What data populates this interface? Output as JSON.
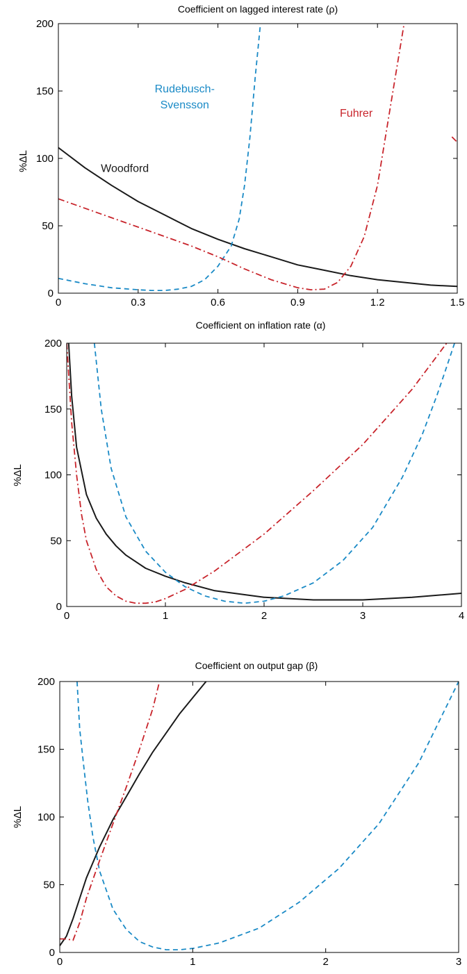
{
  "colors": {
    "woodford": "#1a1a1a",
    "rudebusch": "#1a8ac6",
    "fuhrer": "#c8242b"
  },
  "chart_data": [
    {
      "type": "line",
      "title": "Coefficient on lagged interest rate (ρ)",
      "xlabel": "",
      "ylabel": "%ΔL",
      "xlim": [
        0,
        1.5
      ],
      "ylim": [
        0,
        200
      ],
      "xticks": [
        0,
        0.3,
        0.6,
        0.9,
        1.2,
        1.5
      ],
      "xtick_labels": [
        "0",
        "0.3",
        "0.6",
        "0.9",
        "1.2",
        "1.5"
      ],
      "yticks": [
        0,
        50,
        100,
        150,
        200
      ],
      "ytick_labels": [
        "0",
        "50",
        "100",
        "150",
        "200"
      ],
      "grid": false,
      "annotations": [
        {
          "text": "Woodford",
          "series": "woodford",
          "x": 0.25,
          "y": 90
        },
        {
          "text": "Rudebusch-",
          "series": "rudebusch",
          "x": 0.475,
          "y": 149
        },
        {
          "text": "Svensson",
          "series": "rudebusch",
          "x": 0.475,
          "y": 137
        },
        {
          "text": "Fuhrer",
          "series": "fuhrer",
          "x": 1.12,
          "y": 131
        }
      ],
      "series": [
        {
          "key": "woodford",
          "style": "solid",
          "x": [
            0,
            0.1,
            0.2,
            0.3,
            0.4,
            0.5,
            0.6,
            0.7,
            0.8,
            0.9,
            1.0,
            1.1,
            1.2,
            1.3,
            1.4,
            1.5
          ],
          "y": [
            108,
            93,
            80,
            68,
            58,
            48,
            40,
            33,
            27,
            21,
            17,
            13,
            10,
            8,
            6,
            5
          ]
        },
        {
          "key": "rudebusch",
          "style": "dashed",
          "x": [
            0,
            0.1,
            0.2,
            0.3,
            0.35,
            0.4,
            0.45,
            0.5,
            0.55,
            0.6,
            0.65,
            0.68,
            0.7,
            0.72,
            0.74,
            0.76
          ],
          "y": [
            11,
            7,
            4,
            2.5,
            2,
            2,
            3,
            5,
            10,
            20,
            35,
            55,
            80,
            115,
            160,
            200
          ]
        },
        {
          "key": "fuhrer",
          "style": "dashdot",
          "x": [
            0,
            0.1,
            0.2,
            0.3,
            0.4,
            0.5,
            0.6,
            0.7,
            0.8,
            0.9,
            0.95,
            1.0,
            1.05,
            1.1,
            1.15,
            1.2,
            1.25,
            1.3
          ],
          "y": [
            70,
            63,
            56,
            49,
            42,
            35,
            27,
            18,
            10,
            4,
            2.5,
            3,
            8,
            20,
            42,
            80,
            140,
            200
          ]
        },
        {
          "key": "fuhrer",
          "style": "dashdot",
          "x": [
            1.48,
            1.5
          ],
          "y": [
            116,
            112
          ]
        }
      ]
    },
    {
      "type": "line",
      "title": "Coefficient on inflation rate (α)",
      "xlabel": "",
      "ylabel": "%ΔL",
      "xlim": [
        0,
        4
      ],
      "ylim": [
        0,
        200
      ],
      "xticks": [
        0,
        1,
        2,
        3,
        4
      ],
      "xtick_labels": [
        "0",
        "1",
        "2",
        "3",
        "4"
      ],
      "yticks": [
        0,
        50,
        100,
        150,
        200
      ],
      "ytick_labels": [
        "0",
        "50",
        "100",
        "150",
        "200"
      ],
      "grid": false,
      "annotations": [],
      "series": [
        {
          "key": "woodford",
          "style": "solid",
          "x": [
            0.02,
            0.05,
            0.1,
            0.2,
            0.3,
            0.4,
            0.5,
            0.6,
            0.8,
            1.0,
            1.2,
            1.5,
            2.0,
            2.5,
            3.0,
            3.5,
            4.0
          ],
          "y": [
            200,
            160,
            121,
            85,
            67,
            55,
            46,
            39,
            29,
            23,
            18,
            12,
            7,
            5,
            5,
            7,
            10
          ]
        },
        {
          "key": "rudebusch",
          "style": "dashed",
          "x": [
            0.28,
            0.35,
            0.45,
            0.6,
            0.8,
            1.0,
            1.2,
            1.4,
            1.6,
            1.8,
            2.0,
            2.2,
            2.5,
            2.8,
            3.1,
            3.4,
            3.6,
            3.75,
            3.85,
            3.93
          ],
          "y": [
            200,
            150,
            105,
            68,
            42,
            26,
            15,
            8,
            4,
            2.5,
            4,
            8,
            18,
            35,
            60,
            98,
            130,
            160,
            182,
            200
          ]
        },
        {
          "key": "fuhrer",
          "style": "dashdot",
          "x": [
            0,
            0.05,
            0.1,
            0.15,
            0.2,
            0.3,
            0.4,
            0.5,
            0.6,
            0.7,
            0.8,
            0.9,
            1.0,
            1.2,
            1.5,
            2.0,
            2.5,
            3.0,
            3.5,
            3.85
          ],
          "y": [
            200,
            140,
            100,
            70,
            50,
            28,
            15,
            8,
            4,
            2.5,
            2.5,
            3.5,
            6,
            13,
            27,
            55,
            88,
            123,
            165,
            200
          ]
        }
      ]
    },
    {
      "type": "line",
      "title": "Coefficient on output gap (β)",
      "xlabel": "",
      "ylabel": "%ΔL",
      "xlim": [
        0,
        3
      ],
      "ylim": [
        0,
        200
      ],
      "xticks": [
        0,
        1,
        2,
        3
      ],
      "xtick_labels": [
        "0",
        "1",
        "2",
        "3"
      ],
      "yticks": [
        0,
        50,
        100,
        150,
        200
      ],
      "ytick_labels": [
        "0",
        "50",
        "100",
        "150",
        "200"
      ],
      "grid": false,
      "annotations": [],
      "series": [
        {
          "key": "woodford",
          "style": "solid",
          "x": [
            0,
            0.05,
            0.1,
            0.15,
            0.2,
            0.3,
            0.4,
            0.5,
            0.6,
            0.7,
            0.8,
            0.9,
            1.0,
            1.1
          ],
          "y": [
            5,
            12,
            25,
            40,
            55,
            78,
            98,
            115,
            132,
            148,
            162,
            176,
            188,
            200
          ]
        },
        {
          "key": "rudebusch",
          "style": "dashed",
          "x": [
            0.13,
            0.15,
            0.18,
            0.21,
            0.25,
            0.3,
            0.4,
            0.5,
            0.6,
            0.7,
            0.8,
            0.9,
            1.0,
            1.2,
            1.5,
            1.8,
            2.1,
            2.4,
            2.7,
            3.0
          ],
          "y": [
            200,
            165,
            138,
            112,
            85,
            60,
            32,
            17,
            8,
            4,
            2,
            2,
            3,
            7,
            18,
            37,
            62,
            95,
            140,
            200
          ]
        },
        {
          "key": "fuhrer",
          "style": "dashdot",
          "x": [
            0,
            0.05,
            0.1,
            0.15,
            0.2,
            0.3,
            0.4,
            0.5,
            0.6,
            0.7,
            0.75
          ],
          "y": [
            10,
            10,
            9,
            22,
            40,
            68,
            95,
            122,
            150,
            180,
            200
          ]
        }
      ]
    }
  ]
}
